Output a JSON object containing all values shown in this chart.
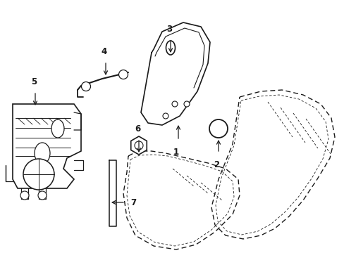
{
  "bg_color": "#ffffff",
  "line_color": "#1a1a1a",
  "fig_w": 4.89,
  "fig_h": 3.6,
  "dpi": 100,
  "lw": 0.9
}
